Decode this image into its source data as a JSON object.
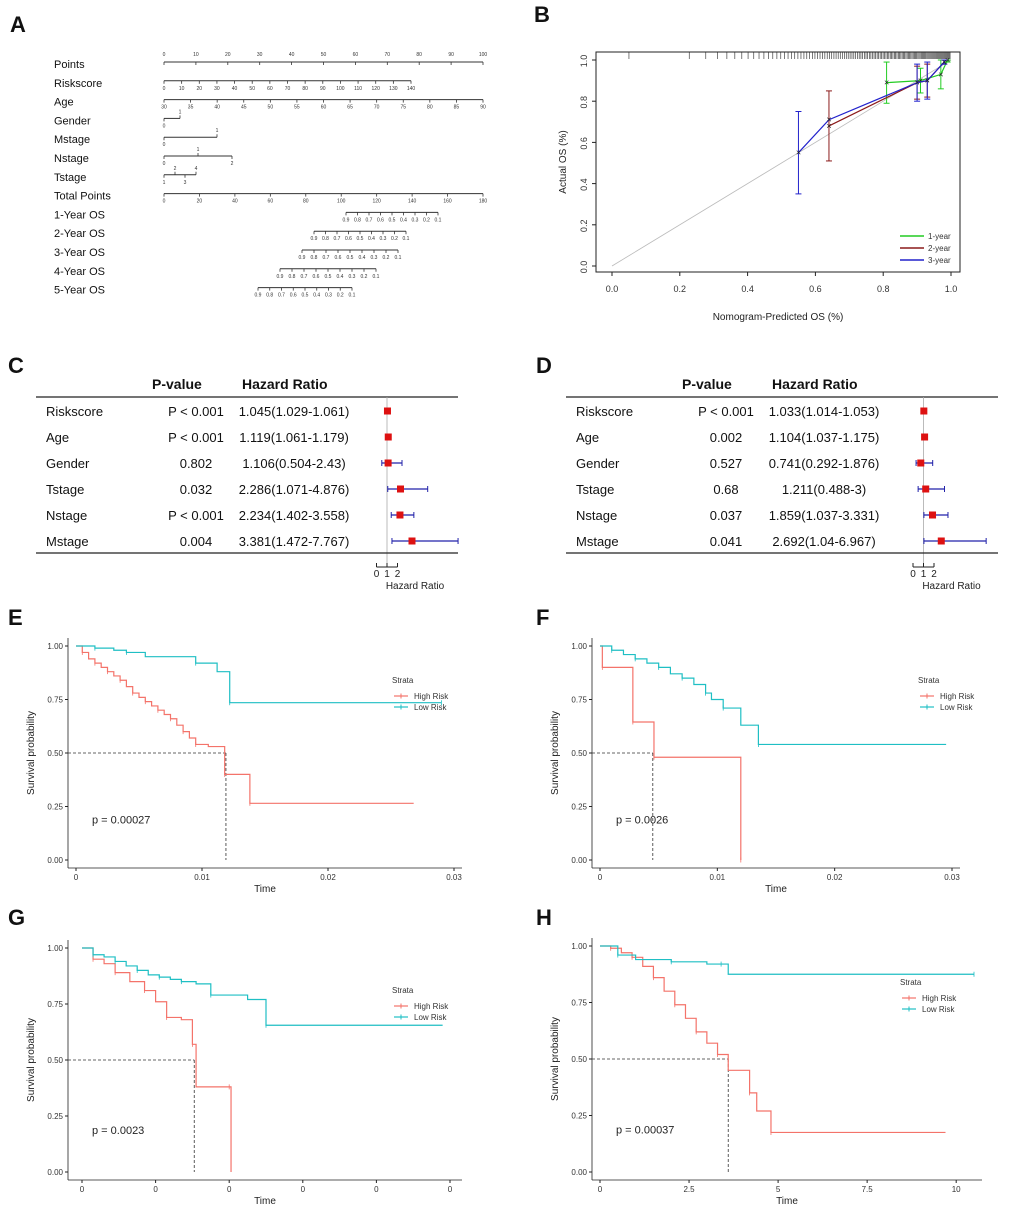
{
  "panels": {
    "A": "A",
    "B": "B",
    "C": "C",
    "D": "D",
    "E": "E",
    "F": "F",
    "G": "G",
    "H": "H"
  },
  "nomogram": {
    "rows": [
      {
        "label": "Points",
        "ticks": [
          "0",
          "10",
          "20",
          "30",
          "40",
          "50",
          "60",
          "70",
          "80",
          "90",
          "100"
        ]
      },
      {
        "label": "Riskscore",
        "ticks": [
          "0",
          "10",
          "20",
          "30",
          "40",
          "50",
          "60",
          "70",
          "80",
          "90",
          "100",
          "110",
          "120",
          "130",
          "140"
        ]
      },
      {
        "label": "Age",
        "ticks": [
          "30",
          "35",
          "40",
          "45",
          "50",
          "55",
          "60",
          "65",
          "70",
          "75",
          "80",
          "85",
          "90"
        ]
      },
      {
        "label": "Gender",
        "ticks": [
          "1",
          "0"
        ]
      },
      {
        "label": "Mstage",
        "ticks": [
          "0",
          "1"
        ]
      },
      {
        "label": "Nstage",
        "ticks": [
          "0",
          "1",
          "2"
        ]
      },
      {
        "label": "Tstage",
        "ticks": [
          "2",
          "4",
          "1",
          "3"
        ]
      },
      {
        "label": "Total Points",
        "ticks": [
          "0",
          "20",
          "40",
          "60",
          "80",
          "100",
          "120",
          "140",
          "160",
          "180"
        ]
      },
      {
        "label": "1-Year OS",
        "ticks": [
          "0.9",
          "0.8",
          "0.7",
          "0.6",
          "0.5",
          "0.4",
          "0.3",
          "0.2",
          "0.1"
        ]
      },
      {
        "label": "2-Year OS",
        "ticks": [
          "0.9",
          "0.8",
          "0.7",
          "0.6",
          "0.5",
          "0.4",
          "0.3",
          "0.2",
          "0.1"
        ]
      },
      {
        "label": "3-Year OS",
        "ticks": [
          "0.9",
          "0.8",
          "0.7",
          "0.6",
          "0.5",
          "0.4",
          "0.3",
          "0.2",
          "0.1"
        ]
      },
      {
        "label": "4-Year OS",
        "ticks": [
          "0.9",
          "0.8",
          "0.7",
          "0.6",
          "0.5",
          "0.4",
          "0.3",
          "0.2",
          "0.1"
        ]
      },
      {
        "label": "5-Year OS",
        "ticks": [
          "0.9",
          "0.8",
          "0.7",
          "0.6",
          "0.5",
          "0.4",
          "0.3",
          "0.2",
          "0.1"
        ]
      }
    ]
  },
  "chart_data": [
    {
      "id": "B",
      "type": "scatter",
      "title": "",
      "xlabel": "Nomogram-Predicted OS (%)",
      "ylabel": "Actual OS (%)",
      "xlim": [
        0,
        1
      ],
      "ylim": [
        0,
        1
      ],
      "xticks": [
        "0.0",
        "0.2",
        "0.4",
        "0.6",
        "0.8",
        "1.0"
      ],
      "yticks": [
        "0.0",
        "0.2",
        "0.4",
        "0.6",
        "0.8",
        "1.0"
      ],
      "legend": [
        "1-year",
        "2-year",
        "3-year"
      ],
      "colors": [
        "#22cc22",
        "#8b1a1a",
        "#2222cc"
      ],
      "series": [
        {
          "name": "1-year",
          "x": [
            0.81,
            0.91,
            0.97,
            0.99
          ],
          "y": [
            0.89,
            0.9,
            0.93,
            1.0
          ],
          "err": [
            0.1,
            0.06,
            0.07,
            0.01
          ]
        },
        {
          "name": "2-year",
          "x": [
            0.64,
            0.9,
            0.93,
            0.98
          ],
          "y": [
            0.68,
            0.89,
            0.9,
            0.99
          ],
          "err": [
            0.17,
            0.08,
            0.08,
            0.01
          ]
        },
        {
          "name": "3-year",
          "x": [
            0.55,
            0.64,
            0.9,
            0.93,
            0.98
          ],
          "y": [
            0.55,
            0.71,
            0.89,
            0.9,
            0.99
          ],
          "err": [
            0.2,
            0.0,
            0.09,
            0.09,
            0.01
          ]
        }
      ]
    },
    {
      "id": "C",
      "type": "table",
      "headers": [
        "P-value",
        "Hazard Ratio"
      ],
      "xlabel": "Hazard Ratio",
      "xticks": [
        "0",
        "1",
        "2"
      ],
      "rows": [
        {
          "var": "Riskscore",
          "p": "P < 0.001",
          "hr": "1.045(1.029-1.061)",
          "est": 1.045,
          "lo": 1.029,
          "hi": 1.061
        },
        {
          "var": "Age",
          "p": "P < 0.001",
          "hr": "1.119(1.061-1.179)",
          "est": 1.119,
          "lo": 1.061,
          "hi": 1.179
        },
        {
          "var": "Gender",
          "p": "0.802",
          "hr": "1.106(0.504-2.43)",
          "est": 1.106,
          "lo": 0.504,
          "hi": 2.43
        },
        {
          "var": "Tstage",
          "p": "0.032",
          "hr": "2.286(1.071-4.876)",
          "est": 2.286,
          "lo": 1.071,
          "hi": 4.876
        },
        {
          "var": "Nstage",
          "p": "P < 0.001",
          "hr": "2.234(1.402-3.558)",
          "est": 2.234,
          "lo": 1.402,
          "hi": 3.558
        },
        {
          "var": "Mstage",
          "p": "0.004",
          "hr": "3.381(1.472-7.767)",
          "est": 3.381,
          "lo": 1.472,
          "hi": 7.767
        }
      ]
    },
    {
      "id": "D",
      "type": "table",
      "headers": [
        "P-value",
        "Hazard Ratio"
      ],
      "xlabel": "Hazard Ratio",
      "xticks": [
        "0",
        "1",
        "2"
      ],
      "rows": [
        {
          "var": "Riskscore",
          "p": "P < 0.001",
          "hr": "1.033(1.014-1.053)",
          "est": 1.033,
          "lo": 1.014,
          "hi": 1.053
        },
        {
          "var": "Age",
          "p": "0.002",
          "hr": "1.104(1.037-1.175)",
          "est": 1.104,
          "lo": 1.037,
          "hi": 1.175
        },
        {
          "var": "Gender",
          "p": "0.527",
          "hr": "0.741(0.292-1.876)",
          "est": 0.741,
          "lo": 0.292,
          "hi": 1.876
        },
        {
          "var": "Tstage",
          "p": "0.68",
          "hr": "1.211(0.488-3)",
          "est": 1.211,
          "lo": 0.488,
          "hi": 3.0
        },
        {
          "var": "Nstage",
          "p": "0.037",
          "hr": "1.859(1.037-3.331)",
          "est": 1.859,
          "lo": 1.037,
          "hi": 3.331
        },
        {
          "var": "Mstage",
          "p": "0.041",
          "hr": "2.692(1.04-6.967)",
          "est": 2.692,
          "lo": 1.04,
          "hi": 6.967
        }
      ]
    },
    {
      "id": "E",
      "type": "line",
      "xlabel": "Time",
      "ylabel": "Survival probability",
      "xlim": [
        0,
        0.03
      ],
      "ylim": [
        0,
        1
      ],
      "xticks": [
        "0",
        "0.01",
        "0.02",
        "0.03"
      ],
      "xtickvals": [
        0,
        0.01,
        0.02,
        0.03
      ],
      "yticks": [
        "0.00",
        "0.25",
        "0.50",
        "0.75",
        "1.00"
      ],
      "pvalue": "p = 0.00027",
      "median_x": 0.0119,
      "legend_title": "Strata",
      "legend": [
        "High Risk",
        "Low Risk"
      ],
      "series": [
        {
          "name": "High Risk",
          "x": [
            0,
            0.0005,
            0.001,
            0.0015,
            0.002,
            0.0025,
            0.003,
            0.0035,
            0.004,
            0.0045,
            0.005,
            0.0055,
            0.006,
            0.0065,
            0.007,
            0.0075,
            0.008,
            0.0085,
            0.009,
            0.0095,
            0.0105,
            0.0118,
            0.0121,
            0.0138,
            0.0268
          ],
          "y": [
            1.0,
            0.97,
            0.94,
            0.92,
            0.9,
            0.88,
            0.86,
            0.84,
            0.81,
            0.78,
            0.76,
            0.74,
            0.72,
            0.7,
            0.68,
            0.66,
            0.63,
            0.6,
            0.57,
            0.54,
            0.53,
            0.4,
            0.4,
            0.265,
            0.265
          ]
        },
        {
          "name": "Low Risk",
          "x": [
            0,
            0.0015,
            0.003,
            0.004,
            0.0055,
            0.0095,
            0.0112,
            0.0122,
            0.015,
            0.029
          ],
          "y": [
            1.0,
            0.99,
            0.98,
            0.97,
            0.95,
            0.92,
            0.88,
            0.735,
            0.735,
            0.735
          ]
        }
      ]
    },
    {
      "id": "F",
      "type": "line",
      "xlabel": "Time",
      "ylabel": "Survival probability",
      "xlim": [
        0,
        0.03
      ],
      "ylim": [
        0,
        1
      ],
      "xticks": [
        "0",
        "0.01",
        "0.02",
        "0.03"
      ],
      "xtickvals": [
        0,
        0.01,
        0.02,
        0.03
      ],
      "yticks": [
        "0.00",
        "0.25",
        "0.50",
        "0.75",
        "1.00"
      ],
      "pvalue": "p = 0.0026",
      "median_x": 0.0045,
      "legend_title": "Strata",
      "legend": [
        "High Risk",
        "Low Risk"
      ],
      "series": [
        {
          "name": "High Risk",
          "x": [
            0,
            0.0002,
            0.0025,
            0.0028,
            0.0045,
            0.0046,
            0.0118,
            0.012
          ],
          "y": [
            1.0,
            0.9,
            0.9,
            0.645,
            0.645,
            0.48,
            0.48,
            0.0
          ]
        },
        {
          "name": "Low Risk",
          "x": [
            0,
            0.001,
            0.002,
            0.003,
            0.004,
            0.005,
            0.006,
            0.007,
            0.008,
            0.009,
            0.0095,
            0.0105,
            0.012,
            0.0135,
            0.0295
          ],
          "y": [
            1.0,
            0.98,
            0.96,
            0.94,
            0.92,
            0.9,
            0.87,
            0.85,
            0.82,
            0.78,
            0.75,
            0.71,
            0.63,
            0.54,
            0.54
          ]
        }
      ]
    },
    {
      "id": "G",
      "type": "line",
      "xlabel": "Time",
      "ylabel": "Survival probability",
      "xlim": [
        0,
        1
      ],
      "ylim": [
        0,
        1
      ],
      "xticks": [
        "0",
        "0",
        "0",
        "0",
        "0",
        "0"
      ],
      "xtickvals": [
        0.0,
        0.2,
        0.4,
        0.6,
        0.8,
        1.0
      ],
      "yticks": [
        "0.00",
        "0.25",
        "0.50",
        "0.75",
        "1.00"
      ],
      "pvalue": "p = 0.0023",
      "median_x": 0.305,
      "legend_title": "Strata",
      "legend": [
        "High Risk",
        "Low Risk"
      ],
      "series": [
        {
          "name": "High Risk",
          "x": [
            0,
            0.03,
            0.06,
            0.09,
            0.13,
            0.17,
            0.2,
            0.23,
            0.27,
            0.3,
            0.31,
            0.4,
            0.405
          ],
          "y": [
            1.0,
            0.95,
            0.93,
            0.89,
            0.85,
            0.81,
            0.76,
            0.69,
            0.68,
            0.57,
            0.38,
            0.38,
            0.0
          ]
        },
        {
          "name": "Low Risk",
          "x": [
            0,
            0.03,
            0.06,
            0.09,
            0.12,
            0.15,
            0.18,
            0.21,
            0.24,
            0.27,
            0.31,
            0.35,
            0.45,
            0.5,
            0.98
          ],
          "y": [
            1.0,
            0.97,
            0.96,
            0.94,
            0.92,
            0.9,
            0.88,
            0.87,
            0.86,
            0.85,
            0.84,
            0.79,
            0.77,
            0.655,
            0.655
          ]
        }
      ]
    },
    {
      "id": "H",
      "type": "line",
      "xlabel": "Time",
      "ylabel": "Survival probability",
      "xlim": [
        0,
        10.5
      ],
      "ylim": [
        0,
        1
      ],
      "xticks": [
        "0",
        "2.5",
        "5",
        "7.5",
        "10"
      ],
      "xtickvals": [
        0,
        2.5,
        5,
        7.5,
        10
      ],
      "yticks": [
        "0.00",
        "0.25",
        "0.50",
        "0.75",
        "1.00"
      ],
      "pvalue": "p = 0.00037",
      "median_x": 3.6,
      "legend_title": "Strata",
      "legend": [
        "High Risk",
        "Low Risk"
      ],
      "series": [
        {
          "name": "High Risk",
          "x": [
            0,
            0.3,
            0.6,
            0.9,
            1.2,
            1.5,
            1.8,
            2.1,
            2.4,
            2.7,
            3.0,
            3.3,
            3.6,
            4.2,
            4.4,
            4.8,
            9.7
          ],
          "y": [
            1.0,
            0.99,
            0.97,
            0.95,
            0.91,
            0.86,
            0.8,
            0.74,
            0.68,
            0.62,
            0.57,
            0.52,
            0.45,
            0.35,
            0.27,
            0.175,
            0.175
          ]
        },
        {
          "name": "Low Risk",
          "x": [
            0,
            0.5,
            1.0,
            2.0,
            3.0,
            3.4,
            3.6,
            10.5
          ],
          "y": [
            1.0,
            0.96,
            0.94,
            0.93,
            0.92,
            0.92,
            0.875,
            0.875
          ]
        }
      ]
    }
  ],
  "colors": {
    "high": "#f4736a",
    "low": "#1fbfc4",
    "forest_point": "#dd1111",
    "forest_ci": "#2222aa"
  }
}
